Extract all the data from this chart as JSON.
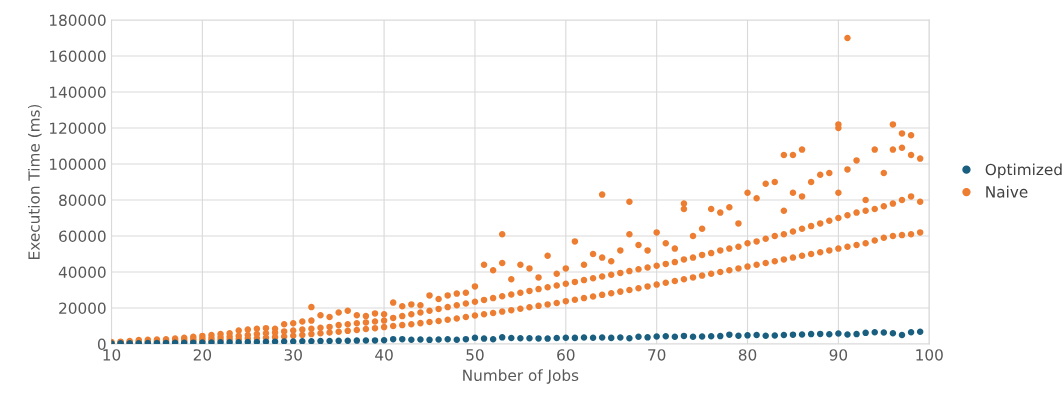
{
  "chart_data": {
    "type": "scatter",
    "xlabel": "Number of Jobs",
    "ylabel": "Execution Time (ms)",
    "xlim": [
      10,
      100
    ],
    "xticks": [
      10,
      20,
      30,
      40,
      50,
      60,
      70,
      80,
      90,
      100
    ],
    "ylim": [
      0,
      180000
    ],
    "yticks": [
      0,
      20000,
      40000,
      60000,
      80000,
      100000,
      120000,
      140000,
      160000,
      180000
    ],
    "grid": true,
    "legend": "right",
    "marker": "circle",
    "series": [
      {
        "name": "Optimized",
        "color": "#1a5f80",
        "x": [
          10,
          11,
          12,
          13,
          14,
          15,
          16,
          17,
          18,
          19,
          20,
          21,
          22,
          23,
          24,
          25,
          26,
          27,
          28,
          29,
          30,
          31,
          32,
          33,
          34,
          35,
          36,
          37,
          38,
          39,
          40,
          41,
          42,
          43,
          44,
          45,
          46,
          47,
          48,
          49,
          50,
          51,
          52,
          53,
          54,
          55,
          56,
          57,
          58,
          59,
          60,
          61,
          62,
          63,
          64,
          65,
          66,
          67,
          68,
          69,
          70,
          71,
          72,
          73,
          74,
          75,
          76,
          77,
          78,
          79,
          80,
          81,
          82,
          83,
          84,
          85,
          86,
          87,
          88,
          89,
          90,
          91,
          92,
          93,
          94,
          95,
          96,
          97,
          98,
          99
        ],
        "values": [
          300,
          350,
          400,
          450,
          500,
          550,
          600,
          650,
          700,
          750,
          800,
          850,
          900,
          950,
          1000,
          1100,
          1150,
          1200,
          1300,
          1350,
          1400,
          1500,
          1550,
          1600,
          1700,
          1750,
          1800,
          1900,
          1950,
          2000,
          2100,
          2700,
          2700,
          2400,
          2500,
          2300,
          2500,
          2600,
          2400,
          2700,
          3500,
          3000,
          2600,
          3700,
          3300,
          3200,
          3200,
          3100,
          3000,
          3300,
          3500,
          3400,
          3600,
          3500,
          3600,
          3400,
          3600,
          3200,
          4000,
          3700,
          4200,
          4300,
          4000,
          4500,
          4000,
          4200,
          4300,
          4400,
          5200,
          4600,
          4800,
          5000,
          4600,
          4700,
          5000,
          5200,
          5300,
          5500,
          5600,
          5400,
          5800,
          5300,
          5500,
          6200,
          6500,
          6400,
          6000,
          5000,
          6500,
          6800
        ]
      },
      {
        "name": "Naive",
        "color": "#ed7d31",
        "x": [
          10,
          10,
          10,
          11,
          11,
          11,
          12,
          12,
          12,
          13,
          13,
          13,
          14,
          14,
          14,
          15,
          15,
          15,
          16,
          16,
          16,
          17,
          17,
          17,
          18,
          18,
          18,
          19,
          19,
          19,
          20,
          20,
          20,
          21,
          21,
          21,
          22,
          22,
          22,
          23,
          23,
          23,
          24,
          24,
          24,
          25,
          25,
          25,
          26,
          26,
          26,
          27,
          27,
          27,
          28,
          28,
          28,
          29,
          29,
          29,
          30,
          30,
          30,
          31,
          31,
          31,
          32,
          32,
          32,
          33,
          33,
          33,
          34,
          34,
          34,
          35,
          35,
          35,
          36,
          36,
          36,
          37,
          37,
          37,
          38,
          38,
          38,
          39,
          39,
          39,
          40,
          40,
          40,
          41,
          41,
          41,
          42,
          42,
          42,
          43,
          43,
          43,
          44,
          44,
          44,
          45,
          45,
          45,
          46,
          46,
          46,
          47,
          47,
          47,
          48,
          48,
          48,
          49,
          49,
          49,
          50,
          50,
          50,
          51,
          51,
          51,
          52,
          52,
          52,
          53,
          53,
          53,
          54,
          54,
          54,
          55,
          55,
          55,
          56,
          56,
          56,
          57,
          57,
          57,
          58,
          58,
          58,
          59,
          59,
          59,
          60,
          60,
          60,
          61,
          61,
          61,
          62,
          62,
          62,
          63,
          63,
          63,
          64,
          64,
          64,
          65,
          65,
          65,
          66,
          66,
          66,
          67,
          67,
          67,
          68,
          68,
          68,
          69,
          69,
          69,
          70,
          70,
          70,
          71,
          71,
          71,
          72,
          72,
          72,
          73,
          73,
          73,
          74,
          74,
          74,
          75,
          75,
          75,
          76,
          76,
          76,
          77,
          77,
          77,
          78,
          78,
          78,
          79,
          79,
          79,
          80,
          80,
          80,
          81,
          81,
          81,
          82,
          82,
          82,
          83,
          83,
          83,
          84,
          84,
          84,
          85,
          85,
          85,
          86,
          86,
          86,
          87,
          87,
          87,
          88,
          88,
          88,
          89,
          89,
          89,
          90,
          90,
          90,
          91,
          91,
          91,
          92,
          92,
          92,
          93,
          93,
          93,
          94,
          94,
          94,
          95,
          95,
          95,
          96,
          96,
          96,
          97,
          97,
          97,
          98,
          98,
          98,
          99,
          99,
          99,
          32,
          53,
          64,
          67,
          73,
          84,
          85,
          86,
          90,
          90,
          91,
          96,
          97,
          98
        ],
        "values": [
          500,
          800,
          1100,
          600,
          900,
          1300,
          700,
          1100,
          1600,
          800,
          1300,
          2200,
          900,
          1500,
          2400,
          1000,
          1700,
          2500,
          1100,
          1800,
          2600,
          1300,
          2100,
          3000,
          1400,
          2400,
          3500,
          1600,
          2700,
          4000,
          1800,
          3000,
          4500,
          2000,
          3300,
          5000,
          2200,
          3700,
          5500,
          2500,
          4000,
          6000,
          2700,
          4500,
          7500,
          3000,
          5000,
          8000,
          3200,
          5500,
          8500,
          3500,
          6000,
          8800,
          3800,
          6300,
          8500,
          4200,
          7000,
          11000,
          4600,
          7500,
          11500,
          5000,
          8000,
          12500,
          5500,
          8500,
          13000,
          6000,
          9000,
          16000,
          6400,
          9500,
          15000,
          6800,
          10500,
          17500,
          7300,
          11000,
          18500,
          7800,
          11500,
          16000,
          8300,
          12000,
          15500,
          8800,
          12500,
          17000,
          9400,
          13000,
          16500,
          10000,
          14500,
          23000,
          10500,
          15500,
          21000,
          11000,
          16500,
          22000,
          11600,
          17500,
          21500,
          12200,
          18500,
          27000,
          12800,
          19500,
          25000,
          13500,
          20500,
          27000,
          14200,
          21500,
          28000,
          15000,
          22500,
          28500,
          15800,
          23500,
          32000,
          16500,
          24500,
          44000,
          17200,
          25500,
          41000,
          18000,
          26500,
          45000,
          18800,
          27500,
          36000,
          19600,
          28500,
          44000,
          20400,
          29500,
          42000,
          21200,
          30500,
          37000,
          22000,
          31500,
          49000,
          22800,
          32500,
          39000,
          23800,
          33500,
          42000,
          24600,
          34500,
          57000,
          25500,
          35500,
          44000,
          26400,
          36500,
          50000,
          27300,
          37500,
          48000,
          28200,
          38500,
          46000,
          29100,
          39500,
          52000,
          30000,
          40500,
          61000,
          31000,
          41500,
          55000,
          32000,
          42500,
          52000,
          33000,
          43500,
          62000,
          34000,
          44500,
          56000,
          35000,
          45500,
          53000,
          36000,
          47000,
          75000,
          37000,
          48000,
          60000,
          38000,
          49500,
          64000,
          39000,
          50500,
          75000,
          40000,
          52000,
          73000,
          41000,
          53000,
          76000,
          42000,
          54000,
          67000,
          43000,
          56000,
          84000,
          44000,
          57000,
          81000,
          45000,
          58500,
          89000,
          46000,
          60000,
          90000,
          47000,
          61000,
          74000,
          48000,
          62500,
          84000,
          49000,
          64000,
          82000,
          50000,
          65500,
          90000,
          51000,
          67000,
          94000,
          52000,
          68500,
          95000,
          53000,
          70000,
          84000,
          54000,
          71500,
          97000,
          55000,
          73000,
          102000,
          56000,
          74000,
          80000,
          57500,
          75000,
          108000,
          59000,
          76500,
          95000,
          60000,
          78000,
          108000,
          60500,
          80000,
          109000,
          61000,
          82000,
          105000,
          62000,
          79000,
          103000,
          20500,
          61000,
          83000,
          79000,
          78000,
          105000,
          105000,
          108000,
          122000,
          120000,
          170000,
          122000,
          117000,
          116000
        ]
      }
    ]
  }
}
